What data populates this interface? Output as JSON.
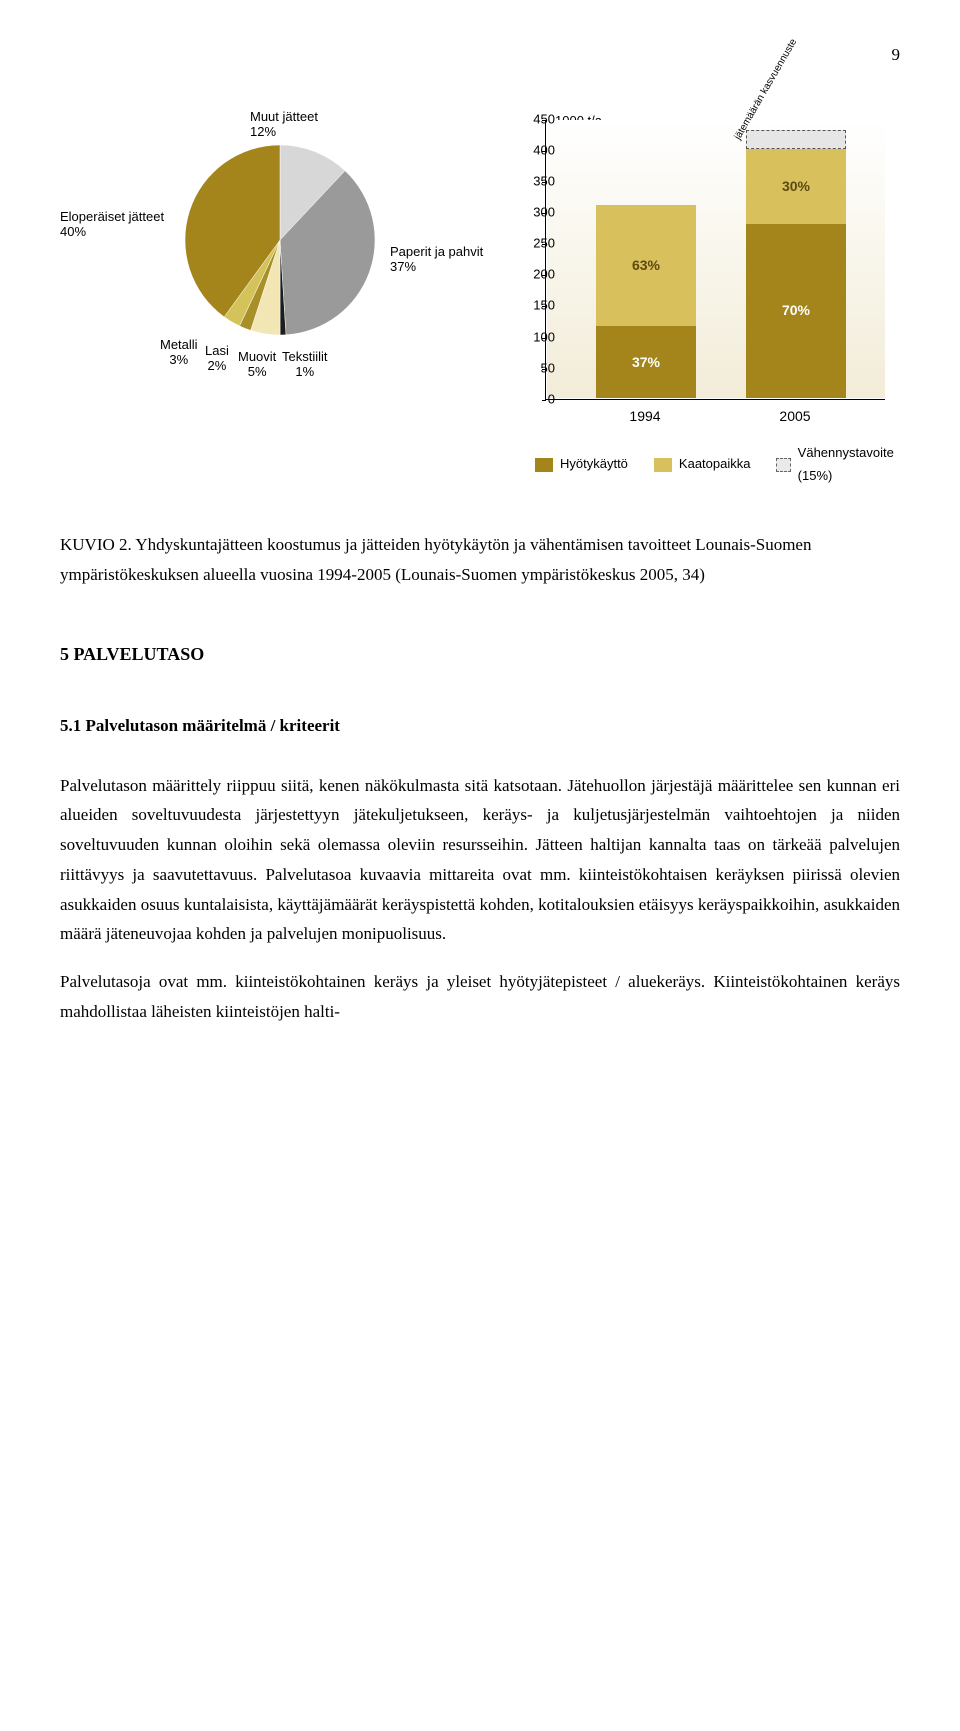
{
  "page_number": "9",
  "pie": {
    "labels": {
      "muut": {
        "name": "Muut jätteet",
        "pct": "12%"
      },
      "paperit": {
        "name": "Paperit ja pahvit",
        "pct": "37%"
      },
      "tekst": {
        "name": "Tekstiilit",
        "pct": "1%"
      },
      "muovit": {
        "name": "Muovit",
        "pct": "5%"
      },
      "lasi": {
        "name": "Lasi",
        "pct": "2%"
      },
      "metalli": {
        "name": "Metalli",
        "pct": "3%"
      },
      "elo": {
        "name": "Eloperäiset jätteet",
        "pct": "40%"
      }
    },
    "slices": [
      {
        "label": "Muut jätteet",
        "value": 12,
        "color": "#d7d7d7"
      },
      {
        "label": "Paperit ja pahvit",
        "value": 37,
        "color": "#9a9a9a"
      },
      {
        "label": "Tekstiilit",
        "value": 1,
        "color": "#1d1d1d"
      },
      {
        "label": "Muovit",
        "value": 5,
        "color": "#f2e6b5"
      },
      {
        "label": "Lasi",
        "value": 2,
        "color": "#a88f28"
      },
      {
        "label": "Metalli",
        "value": 3,
        "color": "#d4c25a"
      },
      {
        "label": "Eloperäiset jätteet",
        "value": 40,
        "color": "#a3851c"
      }
    ]
  },
  "bar": {
    "y_unit": "1000 t/a",
    "y_max": 450,
    "y_ticks": [
      0,
      50,
      100,
      150,
      200,
      250,
      300,
      350,
      400,
      450
    ],
    "colors": {
      "hyoty": "#a3851c",
      "kaato": "#d8c05c",
      "vahen_fill": "#e6e6e6",
      "vahen_border": "#555555",
      "background_top": "#ffffff",
      "background_bottom": "#f2ecd8"
    },
    "columns": [
      {
        "x_label": "1994",
        "total": 310,
        "segments": [
          {
            "key": "hyoty",
            "pct_label": "37%",
            "value": 115
          },
          {
            "key": "kaato",
            "pct_label": "63%",
            "value": 195
          }
        ]
      },
      {
        "x_label": "2005",
        "total": 430,
        "segments": [
          {
            "key": "hyoty",
            "pct_label": "70%",
            "value": 280
          },
          {
            "key": "kaato",
            "pct_label": "30%",
            "value": 120
          }
        ],
        "extra": {
          "key": "vahen",
          "value": 30,
          "rot_label": "jätemäärän kasvuennuste"
        }
      }
    ],
    "legend": [
      {
        "key": "hyoty",
        "label": "Hyötykäyttö"
      },
      {
        "key": "kaato",
        "label": "Kaatopaikka"
      },
      {
        "key": "vahen",
        "label": "Vähennystavoite (15%)"
      }
    ]
  },
  "caption": "KUVIO 2. Yhdyskuntajätteen koostumus ja jätteiden hyötykäytön ja vähentämisen tavoitteet Lounais-Suomen ympäristökeskuksen alueella vuosina 1994-2005 (Lounais-Suomen ympäristökeskus 2005, 34)",
  "section": {
    "num": "5",
    "title": "PALVELUTASO"
  },
  "subsection": {
    "num": "5.1",
    "title": "Palvelutason määritelmä / kriteerit"
  },
  "paragraphs": [
    "Palvelutason määrittely riippuu siitä, kenen näkökulmasta sitä katsotaan. Jätehuollon järjestäjä määrittelee sen kunnan eri alueiden soveltuvuudesta järjestettyyn jätekuljetukseen, keräys- ja kuljetusjärjestelmän vaihtoehtojen ja niiden soveltuvuuden kunnan oloihin sekä olemassa oleviin resursseihin. Jätteen haltijan kannalta taas on tärkeää palvelujen riittävyys ja saavutettavuus. Palvelutasoa kuvaavia mittareita ovat mm. kiinteistökohtaisen keräyksen piirissä olevien asukkaiden osuus kuntalaisista, käyttäjämäärät keräyspistettä kohden, kotitalouksien etäisyys keräyspaikkoihin, asukkaiden määrä jäteneuvojaa kohden ja palvelujen monipuolisuus.",
    "Palvelutasoja ovat mm. kiinteistökohtainen keräys ja yleiset hyötyjätepisteet / aluekeräys. Kiinteistökohtainen keräys mahdollistaa läheisten kiinteistöjen halti-"
  ]
}
